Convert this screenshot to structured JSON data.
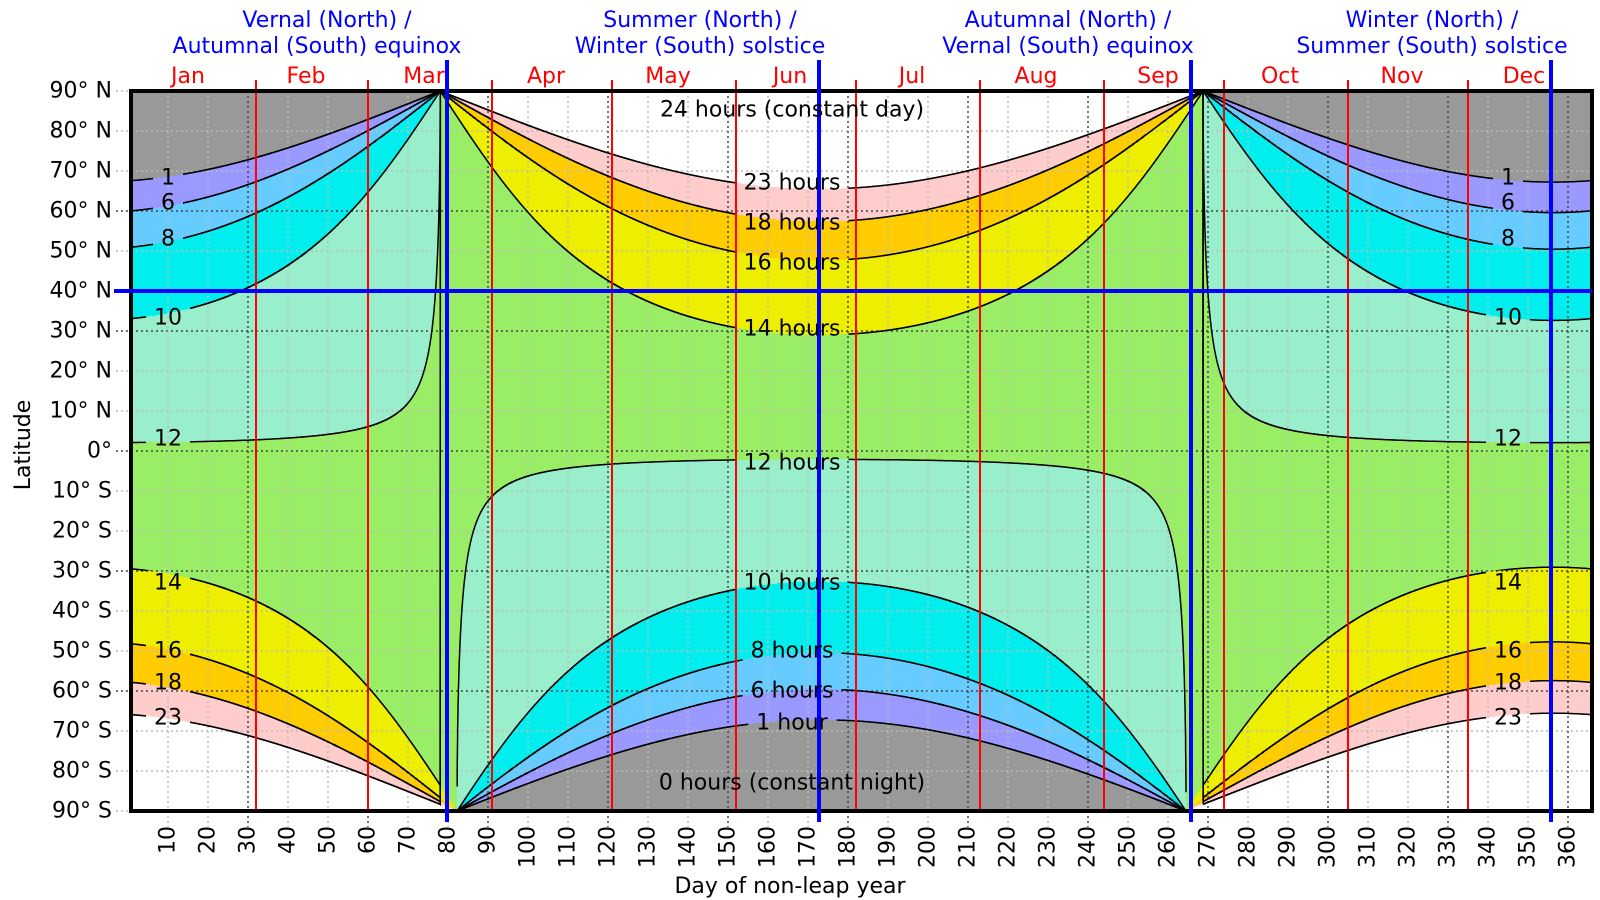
{
  "chart_data": {
    "type": "heatmap",
    "subtype": "contour",
    "title_annotations": [
      {
        "line1": "Vernal (North) /",
        "line2": "Autumnal (South) equinox",
        "day": 80
      },
      {
        "line1": "Summer (North) /",
        "line2": "Winter (South) solstice",
        "day": 173
      },
      {
        "line1": "Autumnal (North) /",
        "line2": "Vernal (South) equinox",
        "day": 266
      },
      {
        "line1": "Winter (North) /",
        "line2": "Summer (South) solstice",
        "day": 356
      }
    ],
    "xlabel": "Day of non-leap year",
    "ylabel": "Latitude",
    "xlim": [
      1,
      366
    ],
    "ylim": [
      -90,
      90
    ],
    "x_ticks": [
      10,
      20,
      30,
      40,
      50,
      60,
      70,
      80,
      90,
      100,
      110,
      120,
      130,
      140,
      150,
      160,
      170,
      180,
      190,
      200,
      210,
      220,
      230,
      240,
      250,
      260,
      270,
      280,
      290,
      300,
      310,
      320,
      330,
      340,
      350,
      360
    ],
    "y_ticks": [
      {
        "value": 90,
        "label": "90° N"
      },
      {
        "value": 80,
        "label": "80° N"
      },
      {
        "value": 70,
        "label": "70° N"
      },
      {
        "value": 60,
        "label": "60° N"
      },
      {
        "value": 50,
        "label": "50° N"
      },
      {
        "value": 40,
        "label": "40° N"
      },
      {
        "value": 30,
        "label": "30° N"
      },
      {
        "value": 20,
        "label": "20° N"
      },
      {
        "value": 10,
        "label": "10° N"
      },
      {
        "value": 0,
        "label": "0°"
      },
      {
        "value": -10,
        "label": "10° S"
      },
      {
        "value": -20,
        "label": "20° S"
      },
      {
        "value": -30,
        "label": "30° S"
      },
      {
        "value": -40,
        "label": "40° S"
      },
      {
        "value": -50,
        "label": "50° S"
      },
      {
        "value": -60,
        "label": "60° S"
      },
      {
        "value": -70,
        "label": "70° S"
      },
      {
        "value": -80,
        "label": "80° S"
      },
      {
        "value": -90,
        "label": "90° S"
      }
    ],
    "highlight_latitude": 40,
    "months": [
      {
        "name": "Jan",
        "start": 1
      },
      {
        "name": "Feb",
        "start": 32
      },
      {
        "name": "Mar",
        "start": 60
      },
      {
        "name": "Apr",
        "start": 91
      },
      {
        "name": "May",
        "start": 121
      },
      {
        "name": "Jun",
        "start": 152
      },
      {
        "name": "Jul",
        "start": 182
      },
      {
        "name": "Aug",
        "start": 213
      },
      {
        "name": "Sep",
        "start": 244
      },
      {
        "name": "Oct",
        "start": 274
      },
      {
        "name": "Nov",
        "start": 305
      },
      {
        "name": "Dec",
        "start": 335
      }
    ],
    "sun_altitude_at_sunrise_deg": -0.833,
    "contour_levels_hours": [
      1,
      6,
      8,
      10,
      12,
      14,
      16,
      18,
      23
    ],
    "bands": [
      {
        "from": 0,
        "to": 1,
        "color": "#999999"
      },
      {
        "from": 1,
        "to": 6,
        "color": "#9999ff"
      },
      {
        "from": 6,
        "to": 8,
        "color": "#66ccff"
      },
      {
        "from": 8,
        "to": 10,
        "color": "#00eeee"
      },
      {
        "from": 10,
        "to": 12,
        "color": "#99eecc"
      },
      {
        "from": 12,
        "to": 14,
        "color": "#99ee66"
      },
      {
        "from": 14,
        "to": 16,
        "color": "#eeee00"
      },
      {
        "from": 16,
        "to": 18,
        "color": "#ffcc00"
      },
      {
        "from": 18,
        "to": 23,
        "color": "#ffcccc"
      },
      {
        "from": 23,
        "to": 24,
        "color": "#ffffff"
      }
    ],
    "center_labels": {
      "h24": "24 hours (constant day)",
      "h23": "23 hours",
      "h18": "18 hours",
      "h16": "16 hours",
      "h14": "14 hours",
      "h12": "12 hours",
      "h10": "10 hours",
      "h8": "8 hours",
      "h6": "6 hours",
      "h1": "1 hour",
      "h0": "0 hours (constant night)"
    },
    "edge_labels": {
      "n1": "1",
      "n6": "6",
      "n8": "8",
      "n10": "10",
      "n12": "12",
      "s14": "14",
      "s16": "16",
      "s18": "18",
      "s23": "23"
    },
    "colors": {
      "marker": "#0000ff",
      "month_line": "#ff0000",
      "contour": "#000000"
    }
  }
}
